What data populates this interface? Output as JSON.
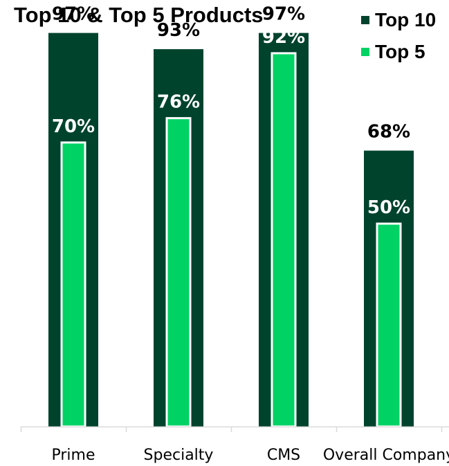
{
  "chart_data": {
    "type": "bar",
    "title": "Top 10 & Top 5 Products",
    "categories": [
      "Prime",
      "Specialty",
      "CMS",
      "Overall Company"
    ],
    "series": [
      {
        "name": "Top 10",
        "values": [
          97,
          93,
          97,
          68
        ],
        "labels": [
          "97%",
          "93%",
          "97%",
          "68%"
        ],
        "color": "#00432D"
      },
      {
        "name": "Top 5",
        "values": [
          70,
          76,
          92,
          50
        ],
        "labels": [
          "70%",
          "76%",
          "92%",
          "50%"
        ],
        "color": "#00D264"
      }
    ],
    "xlabel": "",
    "ylabel": "",
    "ylim": [
      0,
      100
    ],
    "grid": false,
    "legend_position": "top-right",
    "label_colors": {
      "outside": "#000000",
      "inside": "#FFFFFF"
    }
  }
}
